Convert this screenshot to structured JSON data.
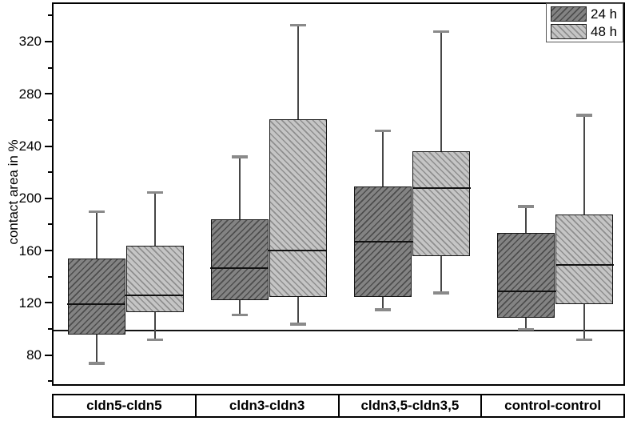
{
  "chart_data": {
    "type": "boxplot",
    "title": "",
    "xlabel": "",
    "ylabel": "contact area in %",
    "ylim": [
      56,
      350
    ],
    "yticks": [
      80,
      120,
      160,
      200,
      240,
      280,
      320
    ],
    "minor_ticks": [
      60,
      100,
      140,
      180,
      220,
      260,
      300,
      340
    ],
    "grid": false,
    "reference_line": 100,
    "legend_position": "top-right",
    "categories": [
      "cldn5-cldn5",
      "cldn3-cldn3",
      "cldn3,5-cldn3,5",
      "control-control"
    ],
    "series": [
      {
        "name": "24 h",
        "style": "dark-hatch",
        "boxes": [
          {
            "whisker_low": 75,
            "q1": 97,
            "median": 120,
            "q3": 155,
            "whisker_high": 191
          },
          {
            "whisker_low": 112,
            "q1": 123,
            "median": 148,
            "q3": 185,
            "whisker_high": 233
          },
          {
            "whisker_low": 116,
            "q1": 126,
            "median": 168,
            "q3": 210,
            "whisker_high": 253
          },
          {
            "whisker_low": 101,
            "q1": 110,
            "median": 130,
            "q3": 175,
            "whisker_high": 195
          }
        ]
      },
      {
        "name": "48 h",
        "style": "light-hatch",
        "boxes": [
          {
            "whisker_low": 93,
            "q1": 114,
            "median": 127,
            "q3": 165,
            "whisker_high": 206
          },
          {
            "whisker_low": 105,
            "q1": 126,
            "median": 161,
            "q3": 262,
            "whisker_high": 334
          },
          {
            "whisker_low": 129,
            "q1": 157,
            "median": 209,
            "q3": 237,
            "whisker_high": 329
          },
          {
            "whisker_low": 93,
            "q1": 120,
            "median": 150,
            "q3": 189,
            "whisker_high": 265
          }
        ]
      }
    ]
  },
  "colors": {
    "dark_fill": "#838383",
    "dark_stripe": "#4d4d4d",
    "light_fill": "#c5c5c5",
    "light_stripe": "#8e8e8e",
    "box_border": "#161616",
    "axis": "#000000",
    "whisker": "#474747",
    "whisker_cap": "#8a8a8a",
    "reference_line": "#111111"
  }
}
